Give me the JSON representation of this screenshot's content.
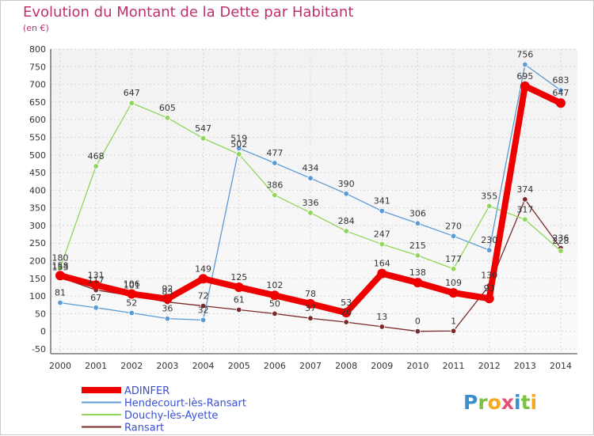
{
  "title": "Evolution du Montant de la Dette par Habitant",
  "unit": "(en €)",
  "logo_text": "Proxiti",
  "chart_data": {
    "type": "line",
    "title": "Evolution du Montant de la Dette par Habitant",
    "subtitle": "(en €)",
    "x": [
      2000,
      2001,
      2002,
      2003,
      2004,
      2005,
      2006,
      2007,
      2008,
      2009,
      2010,
      2011,
      2012,
      2013,
      2014
    ],
    "ylim": [
      -50,
      800
    ],
    "yticks": [
      -50,
      0,
      50,
      100,
      150,
      200,
      250,
      300,
      350,
      400,
      450,
      500,
      550,
      600,
      650,
      700,
      750,
      800
    ],
    "grid": true,
    "legend_position": "bottom-left",
    "series": [
      {
        "name": "ADINFER",
        "color": "#ee0000",
        "values": [
          158,
          131,
          106,
          92,
          149,
          125,
          102,
          78,
          53,
          164,
          138,
          109,
          93,
          695,
          647
        ],
        "labels": [
          "158",
          "131",
          "106",
          "92",
          "149",
          "125",
          "102",
          "78",
          "53",
          "164",
          "138",
          "109",
          "93",
          "695",
          "647"
        ]
      },
      {
        "name": "Hendecourt-lès-Ransart",
        "color": "#5b9bd5",
        "values": [
          81,
          67,
          52,
          36,
          32,
          519,
          477,
          434,
          390,
          341,
          306,
          270,
          230,
          756,
          683
        ],
        "labels": [
          "81",
          "67",
          "52",
          "36",
          "32",
          "519",
          "477",
          "434",
          "390",
          "341",
          "306",
          "270",
          "230",
          "756",
          "683"
        ]
      },
      {
        "name": "Douchy-lès-Ayette",
        "color": "#8fd65a",
        "values": [
          180,
          468,
          647,
          605,
          547,
          502,
          386,
          336,
          284,
          247,
          215,
          177,
          355,
          317,
          228
        ],
        "labels": [
          "180",
          "468",
          "647",
          "605",
          "547",
          "502",
          "386",
          "336",
          "284",
          "247",
          "215",
          "177",
          "355",
          "317",
          "228"
        ]
      },
      {
        "name": "Ransart",
        "color": "#7a2a2a",
        "values": [
          153,
          117,
          101,
          83,
          72,
          61,
          50,
          37,
          26,
          13,
          0,
          1,
          130,
          374,
          236
        ],
        "labels": [
          "153",
          "117",
          "101",
          "83",
          "72",
          "61",
          "50",
          "37",
          "26",
          "13",
          "0",
          "1",
          "130",
          "374",
          "236"
        ]
      }
    ]
  }
}
